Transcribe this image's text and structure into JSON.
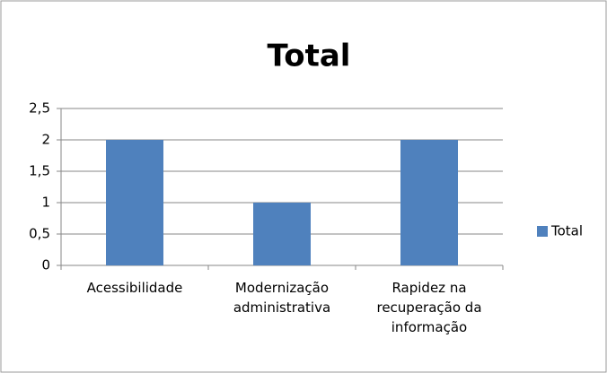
{
  "chart_data": {
    "type": "bar",
    "title": "Total",
    "categories": [
      "Acessibilidade",
      "Modernização administrativa",
      "Rapidez na recuperação da informação"
    ],
    "series": [
      {
        "name": "Total",
        "color": "#4f81bd",
        "values": [
          2,
          1,
          2
        ]
      }
    ],
    "ylim": [
      0,
      2.5
    ],
    "yticks": [
      0,
      {
        "value": 0.5,
        "label": "0,5"
      },
      1,
      {
        "value": 1.5,
        "label": "1,5"
      },
      2,
      {
        "value": 2.5,
        "label": "2,5"
      }
    ],
    "grid": true,
    "legend": "right"
  }
}
